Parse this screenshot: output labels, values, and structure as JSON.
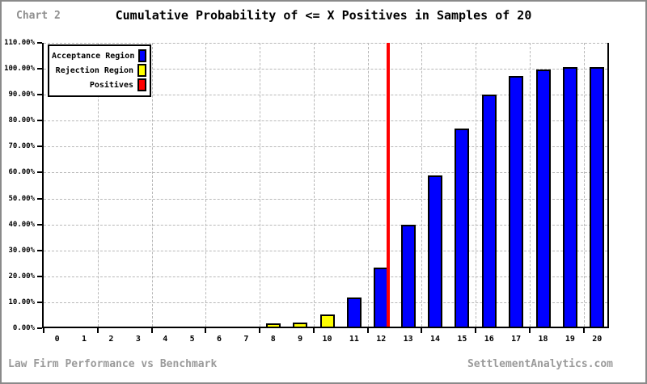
{
  "header": {
    "chart_label": "Chart 2",
    "title": "Cumulative Probability of <= X Positives in Samples of 20"
  },
  "legend": {
    "items": [
      {
        "label": "Acceptance Region",
        "color": "#0000ff"
      },
      {
        "label": "Rejection Region",
        "color": "#ffff00"
      },
      {
        "label": "Positives",
        "color": "#ff0000"
      }
    ]
  },
  "footer": {
    "left": "Law Firm Performance vs Benchmark",
    "right": "SettlementAnalytics.com"
  },
  "chart_data": {
    "type": "bar",
    "title": "Cumulative Probability of <= X Positives in Samples of 20",
    "xlabel": "",
    "ylabel": "",
    "x": [
      0,
      1,
      2,
      3,
      4,
      5,
      6,
      7,
      8,
      9,
      10,
      11,
      12,
      13,
      14,
      15,
      16,
      17,
      18,
      19,
      20
    ],
    "values_percent": [
      0,
      0,
      0,
      0,
      0,
      0.01,
      0.03,
      0.13,
      0.51,
      1.71,
      4.8,
      11.33,
      22.77,
      39.2,
      58.36,
      76.25,
      89.29,
      96.45,
      99.24,
      99.92,
      100.0
    ],
    "rejection_region_max_x": 10,
    "acceptance_region_min_x": 11,
    "positives_line_x": 12.25,
    "xlim": [
      -0.5,
      20.5
    ],
    "ylim_percent": [
      0,
      110
    ],
    "ytick_labels": [
      "0.00%",
      "10.00%",
      "20.00%",
      "30.00%",
      "40.00%",
      "50.00%",
      "60.00%",
      "70.00%",
      "80.00%",
      "90.00%",
      "100.00%",
      "110.00%"
    ],
    "xtick_labels": [
      "0",
      "1",
      "2",
      "3",
      "4",
      "5",
      "6",
      "7",
      "8",
      "9",
      "10",
      "11",
      "12",
      "13",
      "14",
      "15",
      "16",
      "17",
      "18",
      "19",
      "20"
    ],
    "grid": true,
    "gridline_x_positions": [
      1.5,
      3.5,
      5.5,
      7.5,
      9.5,
      11.5,
      13.5,
      15.5,
      17.5,
      19.5
    ],
    "axis_tick_x_positions": [
      -0.5,
      1.5,
      3.5,
      5.5,
      7.5,
      9.5,
      11.5,
      13.5,
      15.5,
      17.5,
      19.5
    ],
    "legend_position": "top-left",
    "colors": {
      "acceptance": "#0000ff",
      "rejection": "#ffff00",
      "positives_line": "#ff0000",
      "grid": "#b8b8b8",
      "axis": "#000000",
      "muted_text": "#9a9a9a"
    }
  }
}
